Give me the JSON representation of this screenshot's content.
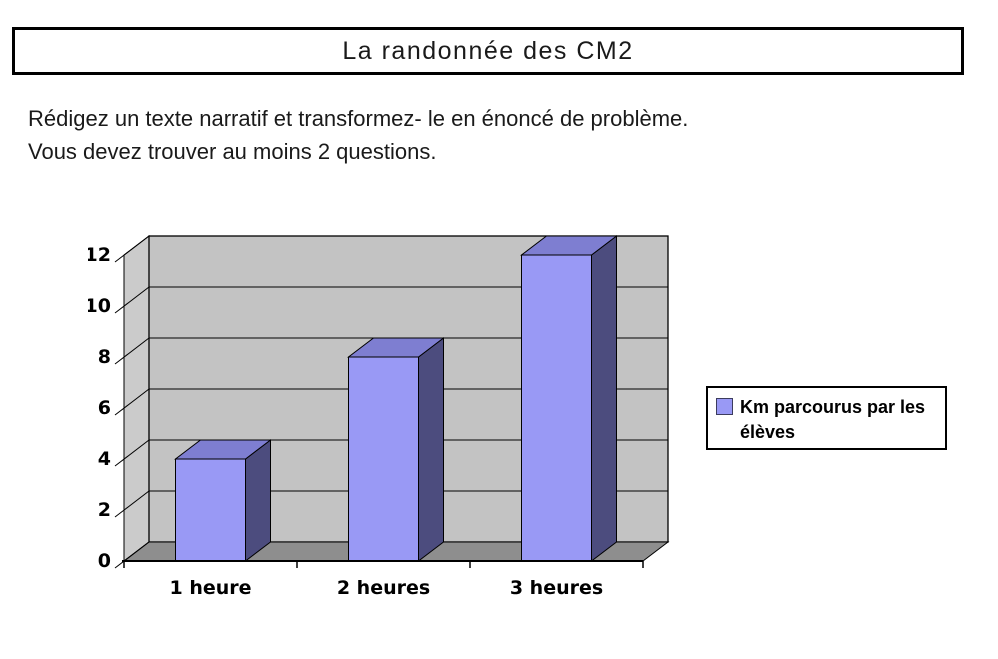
{
  "page": {
    "title": "La randonnée des CM2",
    "instructions": [
      "Rédigez un texte narratif et transformez- le en énoncé de problème.",
      "Vous devez trouver au moins 2 questions."
    ]
  },
  "chart_data": {
    "type": "bar",
    "style": "3d-excel",
    "title": "",
    "xlabel": "",
    "ylabel": "",
    "categories": [
      "1 heure",
      "2 heures",
      "3 heures"
    ],
    "series": [
      {
        "name": "Km parcourus par les élèves",
        "values": [
          4,
          8,
          12
        ]
      }
    ],
    "ylim": [
      0,
      12
    ],
    "ytick_step": 2,
    "yticks": [
      0,
      2,
      4,
      6,
      8,
      10,
      12
    ],
    "grid": true,
    "legend_position": "right",
    "colors": {
      "bar_front": "#9999f5",
      "bar_top": "#7e7ed1",
      "bar_side": "#4c4c7e",
      "back_wall": "#c3c3c3",
      "side_wall": "#cbcbcb",
      "floor": "#8e8e8e",
      "outline": "#000000"
    }
  }
}
